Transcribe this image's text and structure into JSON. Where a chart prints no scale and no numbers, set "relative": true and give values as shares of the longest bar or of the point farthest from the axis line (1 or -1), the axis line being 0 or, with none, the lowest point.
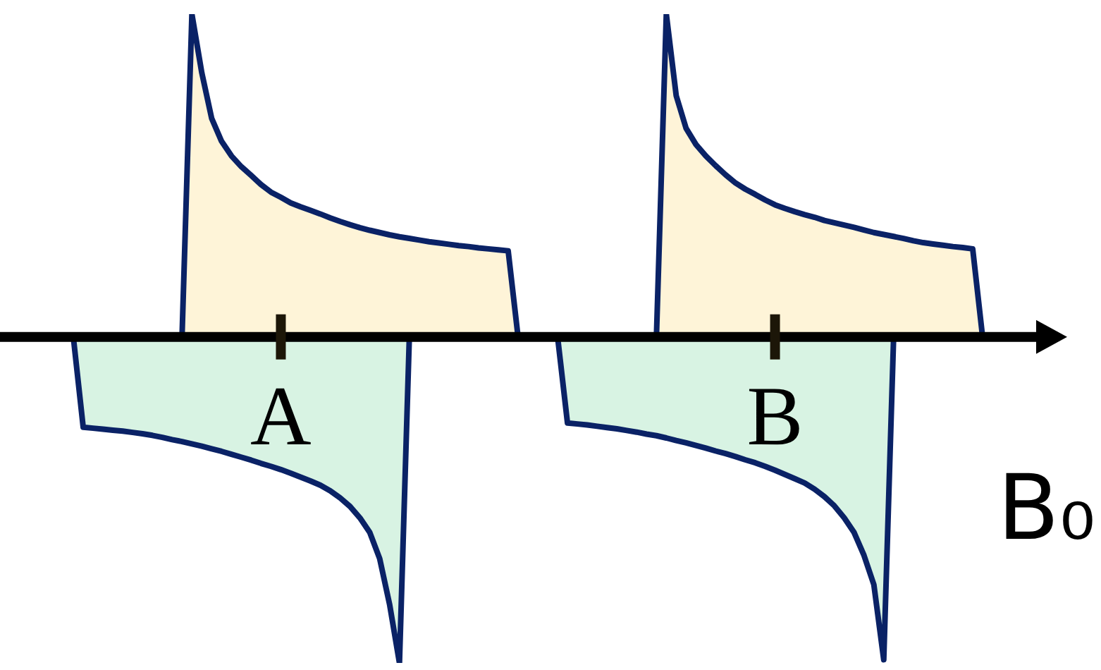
{
  "chart_data": {
    "type": "area",
    "relative": true,
    "xlabel": "B₀",
    "categories": [
      null,
      null,
      null,
      null,
      null,
      null,
      null,
      null,
      null,
      null,
      null,
      null,
      null,
      null,
      null,
      null,
      null,
      null,
      null,
      null,
      null,
      "A",
      null,
      null,
      null,
      null,
      null,
      null,
      null,
      null,
      null,
      null,
      null,
      null,
      null,
      null,
      null,
      null,
      null,
      null,
      null,
      null,
      null,
      null,
      null,
      null,
      null,
      null,
      null,
      null,
      null,
      null,
      null,
      null,
      null,
      null,
      null,
      null,
      null,
      null,
      null,
      null,
      null,
      null,
      null,
      null,
      null,
      null,
      null,
      null,
      null,
      "B",
      null,
      null,
      null,
      null,
      null,
      null,
      null,
      null,
      null,
      null,
      null,
      null,
      null,
      null,
      null,
      null,
      null,
      null,
      null,
      null,
      null
    ],
    "series": [
      {
        "color": "#fef4d8",
        "values": [
          null,
          null,
          null,
          null,
          null,
          null,
          null,
          null,
          null,
          null,
          null,
          0,
          0.99,
          0.81,
          0.67,
          0.6,
          0.555,
          0.522,
          0.495,
          0.467,
          0.444,
          0.428,
          0.411,
          0.399,
          0.388,
          0.377,
          0.365,
          0.354,
          0.344,
          0.335,
          0.327,
          0.32,
          0.313,
          0.307,
          0.302,
          0.297,
          0.292,
          0.288,
          0.284,
          0.28,
          0.277,
          0.273,
          0.27,
          0.267,
          0.264,
          0,
          null,
          null,
          null,
          null,
          null,
          null,
          null,
          null,
          null,
          null,
          null,
          null,
          null,
          0,
          0.99,
          0.74,
          0.64,
          0.59,
          0.555,
          0.525,
          0.497,
          0.472,
          0.453,
          0.437,
          0.42,
          0.405,
          0.394,
          0.384,
          0.375,
          0.367,
          0.357,
          0.35,
          0.343,
          0.336,
          0.328,
          0.32,
          0.314,
          0.308,
          0.302,
          0.295,
          0.289,
          0.285,
          0.281,
          0.277,
          0.274,
          0.27,
          0
        ]
      },
      {
        "color": "#d8f3e3",
        "values": [
          0,
          -0.277,
          -0.28,
          -0.283,
          -0.286,
          -0.289,
          -0.293,
          -0.297,
          -0.302,
          -0.308,
          -0.315,
          -0.321,
          -0.328,
          -0.335,
          -0.343,
          -0.351,
          -0.36,
          -0.369,
          -0.378,
          -0.388,
          -0.397,
          -0.407,
          -0.418,
          -0.43,
          -0.442,
          -0.455,
          -0.472,
          -0.494,
          -0.52,
          -0.555,
          -0.6,
          -0.68,
          -0.82,
          -1,
          0,
          null,
          null,
          null,
          null,
          null,
          null,
          null,
          null,
          null,
          null,
          null,
          null,
          null,
          null,
          0,
          -0.264,
          -0.267,
          -0.27,
          -0.274,
          -0.278,
          -0.282,
          -0.287,
          -0.292,
          -0.298,
          -0.303,
          -0.31,
          -0.318,
          -0.325,
          -0.333,
          -0.341,
          -0.35,
          -0.358,
          -0.367,
          -0.377,
          -0.386,
          -0.397,
          -0.409,
          -0.422,
          -0.435,
          -0.448,
          -0.467,
          -0.49,
          -0.518,
          -0.555,
          -0.6,
          -0.67,
          -0.76,
          -0.99,
          0,
          null,
          null,
          null,
          null,
          null,
          null,
          null,
          null,
          null
        ]
      }
    ]
  }
}
